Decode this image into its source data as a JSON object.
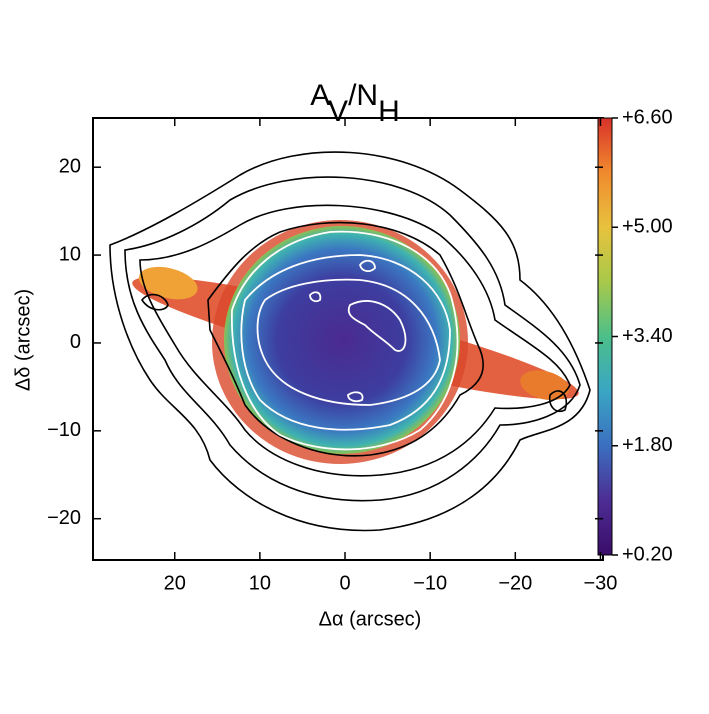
{
  "chart_data": {
    "type": "image",
    "title_parts": [
      {
        "text": "A"
      },
      {
        "text": "V",
        "sub": true
      },
      {
        "text": "/N"
      },
      {
        "text": "H",
        "sub": true
      }
    ],
    "x_label": "Δα (arcsec)",
    "y_label": "Δδ (arcsec)",
    "xlim": [
      29.6,
      -30.3
    ],
    "xticks": [
      20,
      10,
      0,
      {
        "value": -10,
        "label": "−10"
      },
      {
        "value": -20,
        "label": "−20"
      },
      {
        "value": -30,
        "label": "−30"
      }
    ],
    "ylim": [
      -24.7,
      25.6
    ],
    "yticks": [
      20,
      10,
      0,
      {
        "value": -10,
        "label": "−10"
      },
      {
        "value": -20,
        "label": "−20"
      }
    ],
    "colorbar": {
      "lim": [
        0.2,
        6.6
      ],
      "ticks": [
        {
          "value": 6.6,
          "label": "+6.60"
        },
        {
          "value": 5.0,
          "label": "+5.00"
        },
        {
          "value": 3.4,
          "label": "+3.40"
        },
        {
          "value": 1.8,
          "label": "+1.80"
        },
        {
          "value": 0.2,
          "label": "+0.20"
        }
      ],
      "colors": [
        "#3a0c6a",
        "#4d2d93",
        "#3b6fc0",
        "#3aa6c4",
        "#4cbf8a",
        "#a8c94a",
        "#e8c23e",
        "#f08a2e",
        "#d9322a"
      ]
    }
  }
}
